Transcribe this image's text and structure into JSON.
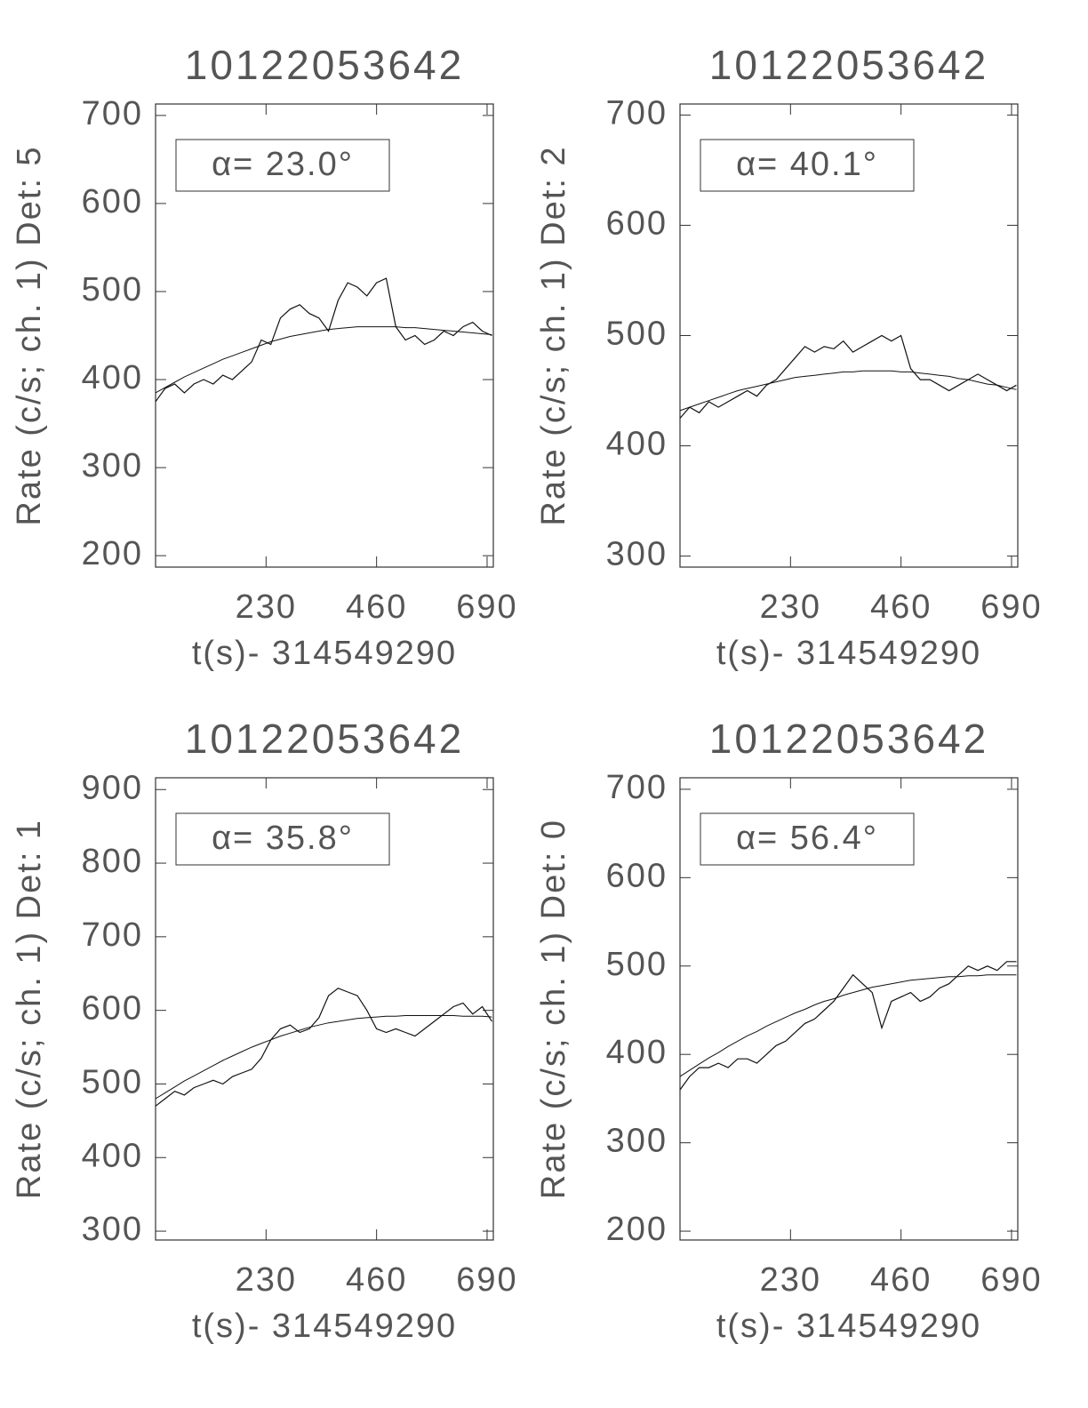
{
  "chart_data": [
    {
      "type": "line",
      "title": "10122053642",
      "xlabel": "t(s)- 314549290",
      "ylabel": "Rate (c/s; ch. 1) Det: 5",
      "annotation": "α= 23.0°",
      "xlim": [
        0,
        703
      ],
      "xticks": [
        230,
        460,
        690
      ],
      "ylim": [
        187,
        713
      ],
      "yticks": [
        200,
        300,
        400,
        500,
        600,
        700
      ],
      "color": "#111",
      "x": [
        0,
        20,
        40,
        60,
        80,
        100,
        120,
        140,
        160,
        180,
        200,
        220,
        240,
        260,
        280,
        300,
        320,
        340,
        360,
        380,
        400,
        420,
        440,
        460,
        480,
        500,
        520,
        540,
        560,
        580,
        600,
        620,
        640,
        660,
        680,
        700
      ],
      "series": [
        {
          "values": [
            375,
            390,
            395,
            385,
            395,
            400,
            395,
            405,
            400,
            410,
            420,
            445,
            440,
            470,
            480,
            485,
            475,
            470,
            455,
            490,
            510,
            505,
            495,
            510,
            515,
            460,
            445,
            450,
            440,
            445,
            455,
            450,
            460,
            465,
            455,
            450
          ]
        },
        {
          "values": [
            385,
            391,
            397,
            403,
            408,
            413,
            418,
            423,
            427,
            431,
            435,
            439,
            443,
            446,
            449,
            451,
            453,
            455,
            457,
            458,
            459,
            460,
            460,
            460,
            460,
            460,
            459,
            459,
            458,
            457,
            456,
            455,
            454,
            453,
            452,
            451
          ]
        }
      ]
    },
    {
      "type": "line",
      "title": "10122053642",
      "xlabel": "t(s)- 314549290",
      "ylabel": "Rate (c/s; ch. 1) Det: 2",
      "annotation": "α= 40.1°",
      "xlim": [
        0,
        703
      ],
      "xticks": [
        230,
        460,
        690
      ],
      "ylim": [
        290,
        710
      ],
      "yticks": [
        300,
        400,
        500,
        600,
        700
      ],
      "color": "#111",
      "x": [
        0,
        20,
        40,
        60,
        80,
        100,
        120,
        140,
        160,
        180,
        200,
        220,
        240,
        260,
        280,
        300,
        320,
        340,
        360,
        380,
        400,
        420,
        440,
        460,
        480,
        500,
        520,
        540,
        560,
        580,
        600,
        620,
        640,
        660,
        680,
        700
      ],
      "series": [
        {
          "values": [
            425,
            435,
            430,
            440,
            435,
            440,
            445,
            450,
            445,
            455,
            460,
            470,
            480,
            490,
            485,
            490,
            488,
            495,
            485,
            490,
            495,
            500,
            495,
            500,
            470,
            460,
            460,
            455,
            450,
            455,
            460,
            465,
            460,
            455,
            450,
            455
          ]
        },
        {
          "values": [
            432,
            435,
            438,
            441,
            444,
            447,
            450,
            452,
            454,
            456,
            458,
            460,
            462,
            463,
            464,
            465,
            466,
            467,
            467,
            468,
            468,
            468,
            468,
            467,
            467,
            466,
            465,
            464,
            463,
            461,
            460,
            458,
            456,
            455,
            453,
            451
          ]
        }
      ]
    },
    {
      "type": "line",
      "title": "10122053642",
      "xlabel": "t(s)- 314549290",
      "ylabel": "Rate (c/s; ch. 1) Det: 1",
      "annotation": "α= 35.8°",
      "xlim": [
        0,
        703
      ],
      "xticks": [
        230,
        460,
        690
      ],
      "ylim": [
        288,
        916
      ],
      "yticks": [
        300,
        400,
        500,
        600,
        700,
        800,
        900
      ],
      "color": "#111",
      "x": [
        0,
        20,
        40,
        60,
        80,
        100,
        120,
        140,
        160,
        180,
        200,
        220,
        240,
        260,
        280,
        300,
        320,
        340,
        360,
        380,
        400,
        420,
        440,
        460,
        480,
        500,
        520,
        540,
        560,
        580,
        600,
        620,
        640,
        660,
        680,
        700
      ],
      "series": [
        {
          "values": [
            470,
            480,
            490,
            485,
            495,
            500,
            505,
            500,
            510,
            515,
            520,
            535,
            560,
            575,
            580,
            570,
            575,
            590,
            620,
            630,
            625,
            620,
            600,
            575,
            570,
            575,
            570,
            565,
            575,
            585,
            595,
            605,
            610,
            595,
            605,
            585
          ]
        },
        {
          "values": [
            480,
            488,
            496,
            504,
            511,
            518,
            525,
            532,
            538,
            544,
            550,
            555,
            560,
            565,
            569,
            573,
            577,
            580,
            583,
            585,
            587,
            589,
            590,
            591,
            592,
            592,
            593,
            593,
            593,
            593,
            593,
            593,
            592,
            592,
            592,
            591
          ]
        }
      ]
    },
    {
      "type": "line",
      "title": "10122053642",
      "xlabel": "t(s)- 314549290",
      "ylabel": "Rate (c/s; ch. 1) Det: 0",
      "annotation": "α= 56.4°",
      "xlim": [
        0,
        703
      ],
      "xticks": [
        230,
        460,
        690
      ],
      "ylim": [
        190,
        713
      ],
      "yticks": [
        200,
        300,
        400,
        500,
        600,
        700
      ],
      "color": "#111",
      "x": [
        0,
        20,
        40,
        60,
        80,
        100,
        120,
        140,
        160,
        180,
        200,
        220,
        240,
        260,
        280,
        300,
        320,
        340,
        360,
        380,
        400,
        420,
        440,
        460,
        480,
        500,
        520,
        540,
        560,
        580,
        600,
        620,
        640,
        660,
        680,
        700
      ],
      "series": [
        {
          "values": [
            360,
            375,
            385,
            385,
            390,
            385,
            395,
            395,
            390,
            400,
            410,
            415,
            425,
            435,
            440,
            450,
            460,
            475,
            490,
            480,
            470,
            430,
            460,
            465,
            470,
            460,
            465,
            475,
            480,
            490,
            500,
            495,
            500,
            495,
            505,
            505
          ]
        },
        {
          "values": [
            375,
            382,
            389,
            396,
            402,
            409,
            415,
            421,
            426,
            432,
            437,
            442,
            447,
            451,
            456,
            460,
            463,
            467,
            470,
            473,
            476,
            478,
            480,
            482,
            484,
            485,
            486,
            487,
            488,
            488,
            489,
            489,
            490,
            490,
            490,
            490
          ]
        }
      ]
    }
  ]
}
